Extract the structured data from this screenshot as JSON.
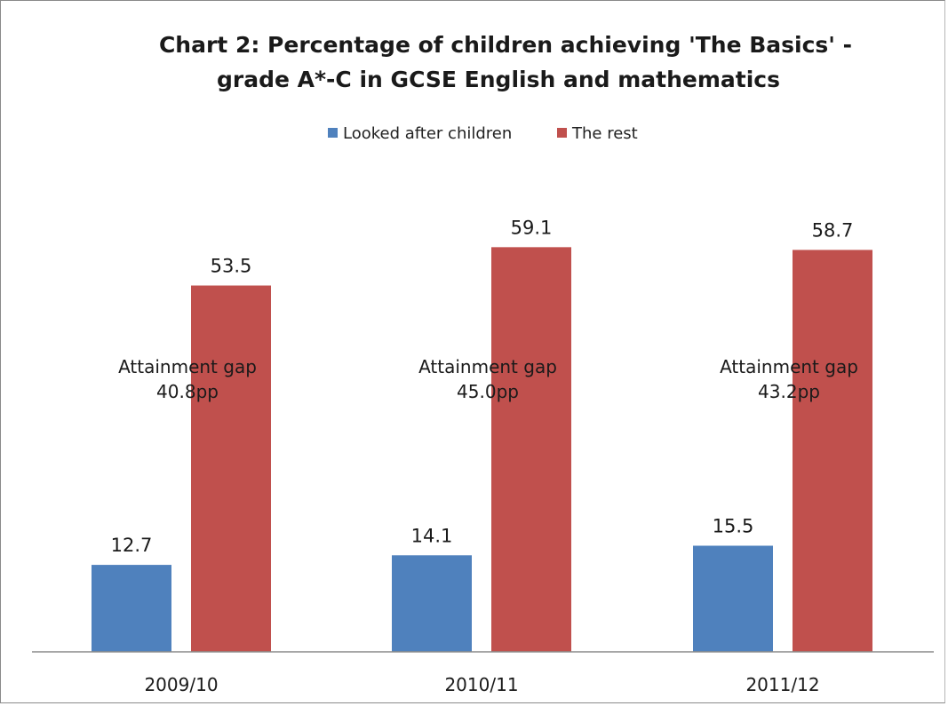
{
  "chart_data": {
    "type": "bar",
    "title": "Chart 2: Percentage of children achieving 'The Basics' - grade A*-C in GCSE English and mathematics",
    "title_lines": [
      "Chart 2: Percentage of children achieving 'The Basics' -",
      "grade A*-C in GCSE English and mathematics"
    ],
    "categories": [
      "2009/10",
      "2010/11",
      "2011/12"
    ],
    "series": [
      {
        "name": "Looked after children",
        "color": "#4F81BD",
        "values": [
          12.7,
          14.1,
          15.5
        ],
        "labels": [
          "12.7",
          "14.1",
          "15.5"
        ]
      },
      {
        "name": "The rest",
        "color": "#C0504D",
        "values": [
          53.5,
          59.1,
          58.7
        ],
        "labels": [
          "53.5",
          "59.1",
          "58.7"
        ]
      }
    ],
    "annotations": [
      {
        "category": "2009/10",
        "line1": "Attainment gap",
        "line2": "40.8pp"
      },
      {
        "category": "2010/11",
        "line1": "Attainment gap",
        "line2": "45.0pp"
      },
      {
        "category": "2011/12",
        "line1": "Attainment gap",
        "line2": "43.2pp"
      }
    ],
    "xlabel": "",
    "ylabel": "",
    "ylim": [
      0,
      70
    ],
    "grid": false,
    "legend": "top"
  }
}
